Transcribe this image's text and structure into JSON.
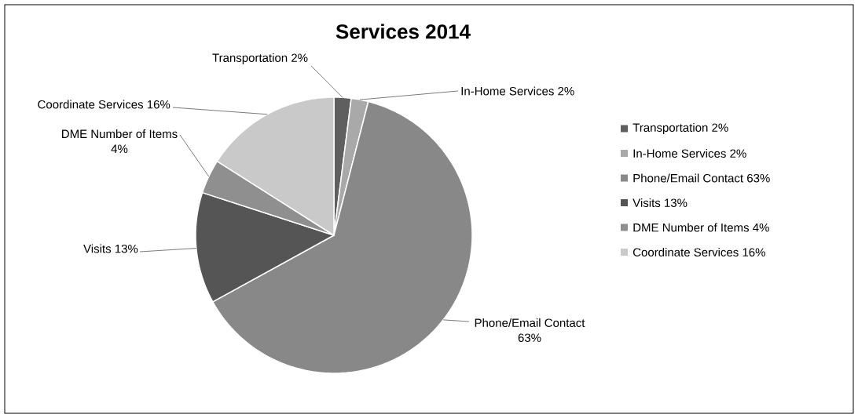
{
  "chart_data": {
    "type": "pie",
    "title": "Services 2014",
    "categories": [
      "Transportation",
      "In-Home Services",
      "Phone/Email Contact",
      "Visits",
      "DME Number of Items",
      "Coordinate Services"
    ],
    "values": [
      2,
      2,
      63,
      13,
      4,
      16
    ],
    "value_labels": [
      "2%",
      "2%",
      "63%",
      "13%",
      "4%",
      "16%"
    ],
    "colors": [
      "#5f5f5f",
      "#a9a9a9",
      "#888888",
      "#555555",
      "#8f8f8f",
      "#c9c9c9"
    ],
    "legend": "right"
  }
}
